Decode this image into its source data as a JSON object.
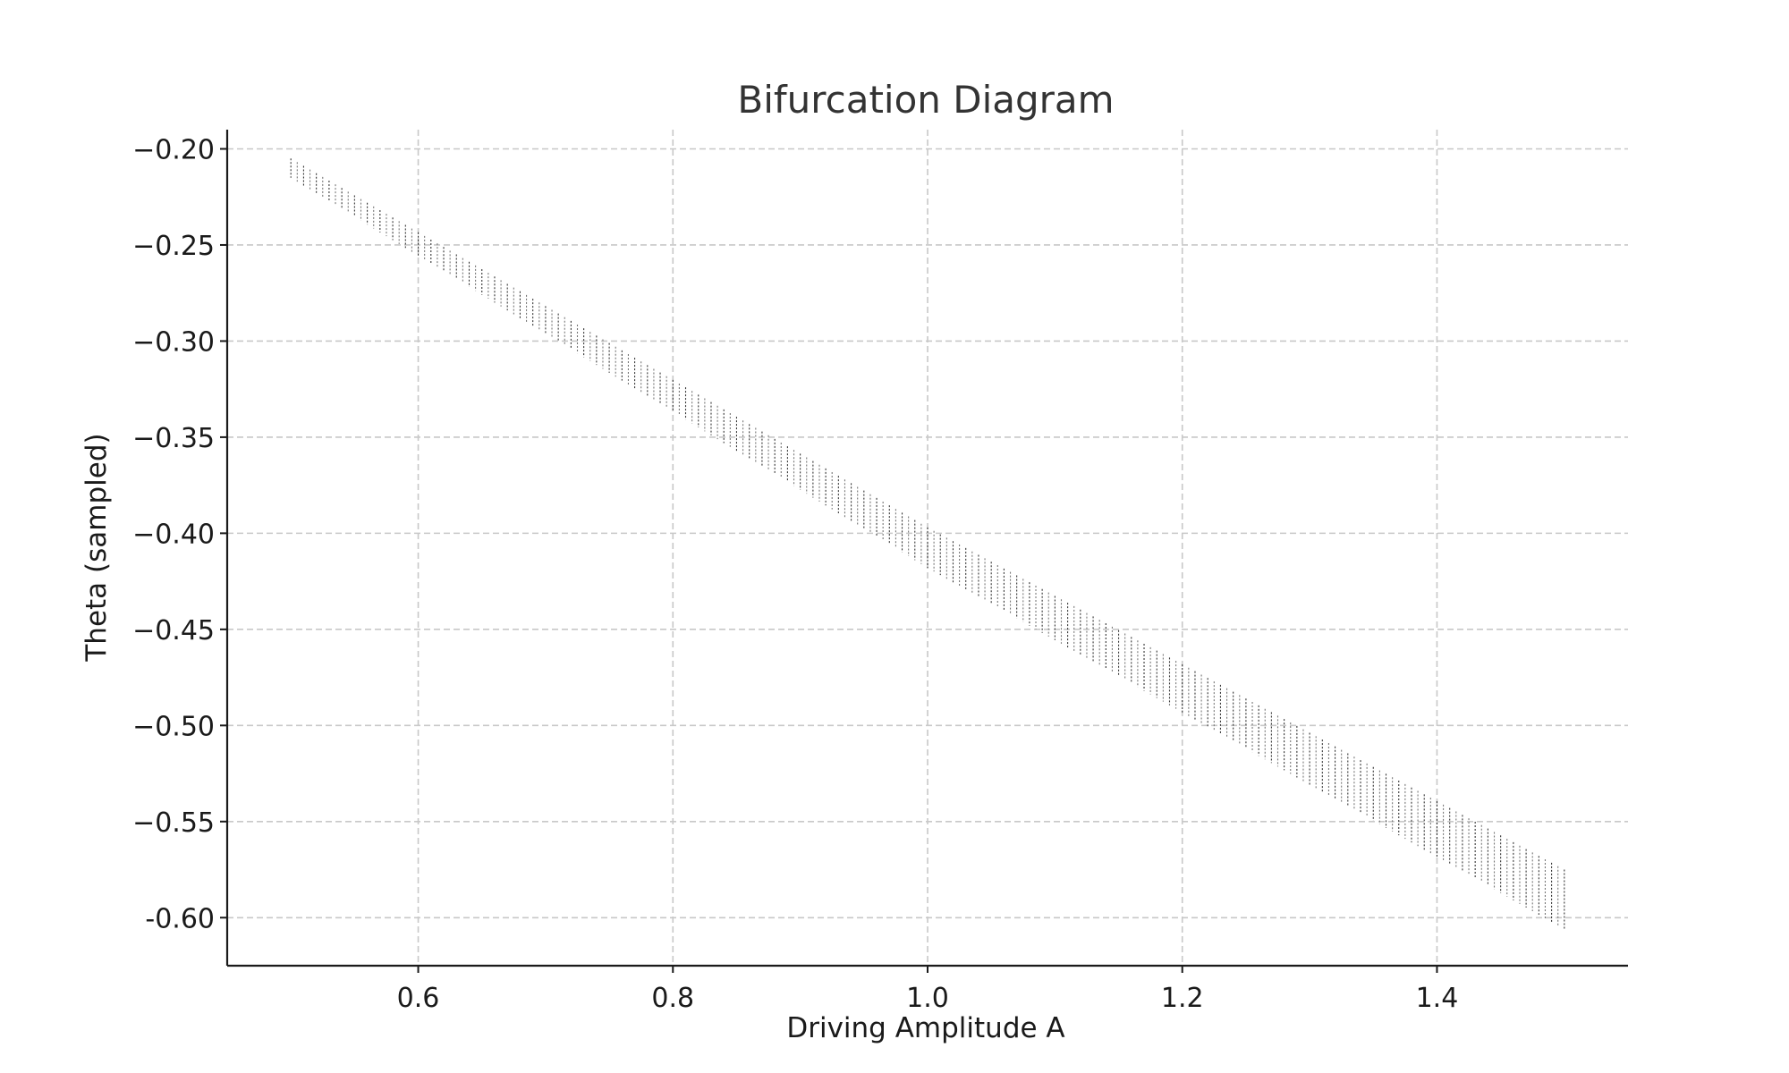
{
  "chart_data": {
    "type": "scatter",
    "title": "Bifurcation Diagram",
    "xlabel": "Driving Amplitude A",
    "ylabel": "Theta (sampled)",
    "xlim": [
      0.45,
      1.55
    ],
    "ylim": [
      -0.625,
      -0.19
    ],
    "xticks": [
      0.6,
      0.8,
      1.0,
      1.2,
      1.4
    ],
    "xtick_labels": [
      "0.6",
      "0.8",
      "1.0",
      "1.2",
      "1.4"
    ],
    "yticks": [
      -0.2,
      -0.25,
      -0.3,
      -0.35,
      -0.4,
      -0.45,
      -0.5,
      -0.55,
      -0.6
    ],
    "ytick_labels": [
      "−0.20",
      "−0.25",
      "−0.30",
      "−0.35",
      "−0.40",
      "−0.45",
      "−0.50",
      "−0.55",
      "-0.60"
    ],
    "grid": true,
    "legend": false,
    "point_color": "#333333",
    "series": [
      {
        "x_start": 0.5,
        "x_end": 1.5,
        "x_step": 0.005,
        "description": "sampled theta band per driving amplitude",
        "envelope": [
          {
            "x": 0.5,
            "y_top": -0.205,
            "y_bottom": -0.215
          },
          {
            "x": 1.0,
            "y_top": -0.397,
            "y_bottom": -0.418
          },
          {
            "x": 1.5,
            "y_top": -0.575,
            "y_bottom": -0.606
          }
        ]
      }
    ]
  }
}
